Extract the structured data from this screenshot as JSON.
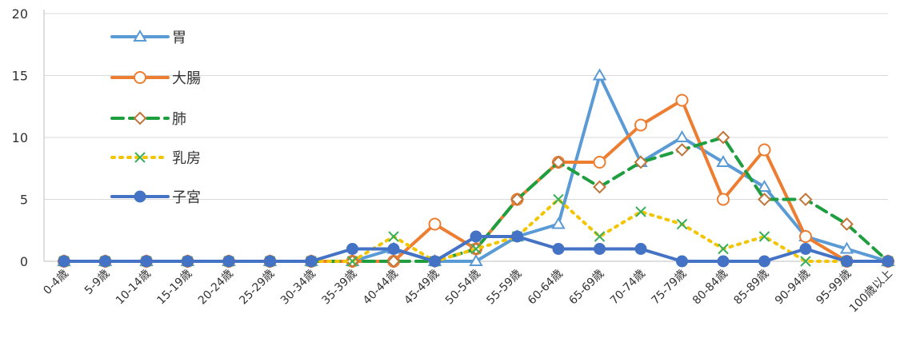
{
  "chart_data": {
    "type": "line",
    "title": "",
    "xlabel": "",
    "ylabel": "",
    "ylim": [
      0,
      20
    ],
    "yticks": [
      0,
      5,
      10,
      15,
      20
    ],
    "grid": "horizontal",
    "legend_position": "top-left",
    "categories": [
      "0-4歳",
      "5-9歳",
      "10-14歳",
      "15-19歳",
      "20-24歳",
      "25-29歳",
      "30-34歳",
      "35-39歳",
      "40-44歳",
      "45-49歳",
      "50-54歳",
      "55-59歳",
      "60-64歳",
      "65-69歳",
      "70-74歳",
      "75-79歳",
      "80-84歳",
      "85-89歳",
      "90-94歳",
      "95-99歳",
      "100歳以上"
    ],
    "series": [
      {
        "name": "胃",
        "color": "#5B9BD5",
        "line_style": "solid",
        "marker": "triangle",
        "values": [
          0,
          0,
          0,
          0,
          0,
          0,
          0,
          0,
          1,
          0,
          0,
          2,
          3,
          15,
          8,
          10,
          8,
          6,
          2,
          1,
          0
        ]
      },
      {
        "name": "大腸",
        "color": "#ED7D31",
        "line_style": "solid",
        "marker": "circle",
        "values": [
          0,
          0,
          0,
          0,
          0,
          0,
          0,
          0,
          0,
          3,
          1,
          5,
          8,
          8,
          11,
          13,
          5,
          9,
          2,
          0,
          0
        ]
      },
      {
        "name": "肺",
        "color": "#1E9E3E",
        "marker_color": "#C0753A",
        "line_style": "dashed",
        "marker": "diamond",
        "values": [
          0,
          0,
          0,
          0,
          0,
          0,
          0,
          0,
          0,
          0,
          1,
          5,
          8,
          6,
          8,
          9,
          10,
          5,
          5,
          3,
          0
        ]
      },
      {
        "name": "乳房",
        "color": "#F2C500",
        "marker_color": "#3BAE5A",
        "line_style": "dotted",
        "marker": "x",
        "values": [
          0,
          0,
          0,
          0,
          0,
          0,
          0,
          0,
          2,
          0,
          1,
          2,
          5,
          2,
          4,
          3,
          1,
          2,
          0,
          0,
          0
        ]
      },
      {
        "name": "子宮",
        "color": "#4472C4",
        "line_style": "solid",
        "marker": "filled-circle",
        "values": [
          0,
          0,
          0,
          0,
          0,
          0,
          0,
          1,
          1,
          0,
          2,
          2,
          1,
          1,
          1,
          0,
          0,
          0,
          1,
          0,
          0
        ]
      }
    ]
  }
}
